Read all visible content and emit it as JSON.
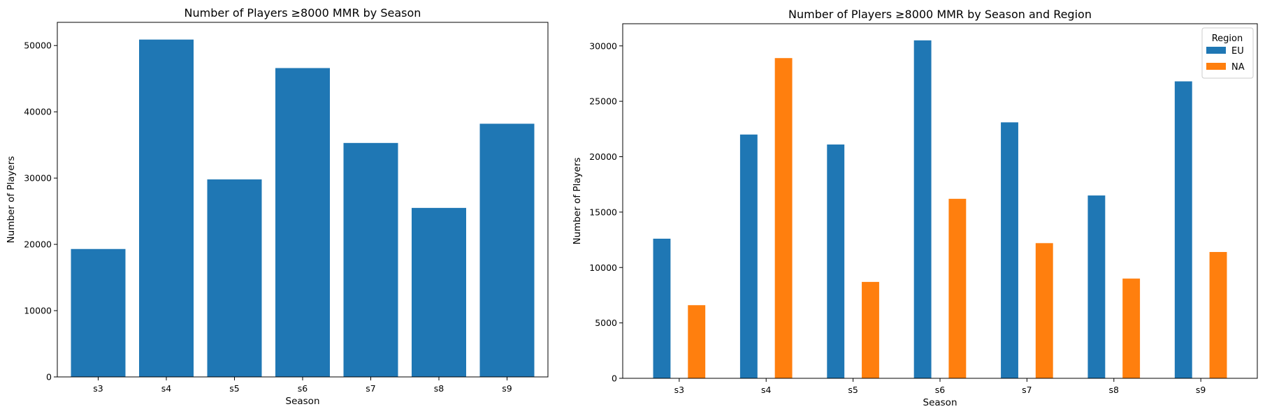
{
  "chart_data": [
    {
      "type": "bar",
      "title": "Number of Players ≥8000 MMR by Season",
      "xlabel": "Season",
      "ylabel": "Number of Players",
      "categories": [
        "s3",
        "s4",
        "s5",
        "s6",
        "s7",
        "s8",
        "s9"
      ],
      "values": [
        19300,
        50900,
        29800,
        46600,
        35300,
        25500,
        38200
      ],
      "ylim": [
        0,
        53500
      ],
      "yticks": [
        0,
        10000,
        20000,
        30000,
        40000,
        50000
      ],
      "ytick_labels": [
        "0",
        "10000",
        "20000",
        "30000",
        "40000",
        "50000"
      ],
      "grid": false,
      "colors": [
        "#1f77b4"
      ]
    },
    {
      "type": "bar",
      "title": "Number of Players ≥8000 MMR by Season and Region",
      "xlabel": "Season",
      "ylabel": "Number of Players",
      "categories": [
        "s3",
        "s4",
        "s5",
        "s6",
        "s7",
        "s8",
        "s9"
      ],
      "series": [
        {
          "name": "EU",
          "values": [
            12600,
            22000,
            21100,
            30500,
            23100,
            16500,
            26800
          ]
        },
        {
          "name": "NA",
          "values": [
            6600,
            28900,
            8700,
            16200,
            12200,
            9000,
            11400
          ]
        }
      ],
      "ylim": [
        0,
        32000
      ],
      "yticks": [
        0,
        5000,
        10000,
        15000,
        20000,
        25000,
        30000
      ],
      "ytick_labels": [
        "0",
        "5000",
        "10000",
        "15000",
        "20000",
        "25000",
        "30000"
      ],
      "legend": {
        "title": "Region",
        "placement": "top-right"
      },
      "grid": false,
      "colors": [
        "#1f77b4",
        "#ff7f0e"
      ]
    }
  ]
}
